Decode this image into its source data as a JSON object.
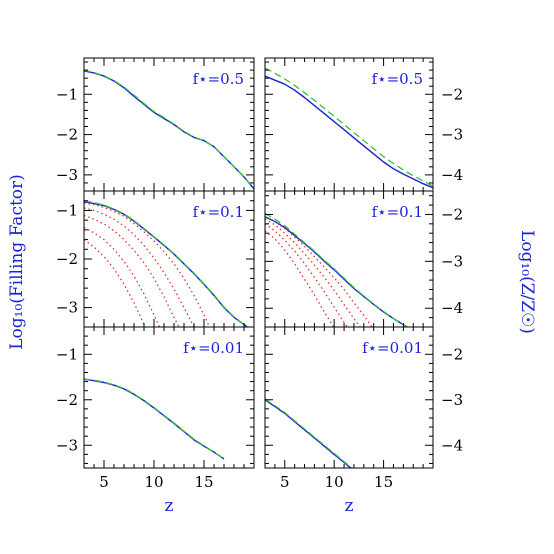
{
  "figure": {
    "left_ylabel": "Log₁₀(Filling Factor)",
    "right_ylabel": "Log₁₀(Z/Z☉)",
    "xlabel_left": "z",
    "xlabel_right": "z"
  },
  "colors": {
    "main": "#1c22d6",
    "dashed": "#35c435",
    "dotted": "#e0322c",
    "axis": "#000000"
  },
  "chart_data": [
    {
      "type": "line",
      "row": 0,
      "col": 0,
      "label": "f⋆=0.5",
      "xlim": [
        3,
        20
      ],
      "ylim": [
        -3.4,
        -0.1
      ],
      "xticks": [
        5,
        10,
        15
      ],
      "yticks": [
        -1,
        -2,
        -3
      ],
      "x": [
        3,
        4,
        5,
        6,
        7,
        8,
        9,
        10,
        11,
        12,
        13,
        14,
        15,
        16,
        17,
        18,
        19,
        20
      ],
      "series": [
        {
          "style": "solid",
          "values": [
            -0.42,
            -0.47,
            -0.55,
            -0.67,
            -0.84,
            -1.05,
            -1.25,
            -1.45,
            -1.6,
            -1.75,
            -1.93,
            -2.07,
            -2.15,
            -2.3,
            -2.55,
            -2.8,
            -3.05,
            -3.35
          ]
        },
        {
          "style": "dashed",
          "values": [
            -0.4,
            -0.46,
            -0.54,
            -0.66,
            -0.82,
            -1.02,
            -1.23,
            -1.43,
            -1.58,
            -1.74,
            -1.92,
            -2.06,
            -2.15,
            -2.3,
            -2.55,
            -2.8,
            -3.05,
            -3.35
          ]
        }
      ]
    },
    {
      "type": "line",
      "row": 0,
      "col": 1,
      "label": "f⋆=0.5",
      "xlim": [
        3,
        20
      ],
      "ylim": [
        -4.4,
        -1.1
      ],
      "xticks": [
        5,
        10,
        15
      ],
      "yticks": [
        -2,
        -3,
        -4
      ],
      "x": [
        3,
        4,
        5,
        6,
        7,
        8,
        9,
        10,
        11,
        12,
        13,
        14,
        15,
        16,
        17,
        18,
        19,
        20
      ],
      "series": [
        {
          "style": "solid",
          "values": [
            -1.55,
            -1.65,
            -1.75,
            -1.9,
            -2.08,
            -2.28,
            -2.48,
            -2.68,
            -2.88,
            -3.08,
            -3.28,
            -3.48,
            -3.68,
            -3.85,
            -3.98,
            -4.1,
            -4.22,
            -4.32
          ]
        },
        {
          "style": "dashed",
          "values": [
            -1.35,
            -1.48,
            -1.62,
            -1.78,
            -1.96,
            -2.15,
            -2.35,
            -2.55,
            -2.75,
            -2.95,
            -3.15,
            -3.35,
            -3.55,
            -3.72,
            -3.88,
            -4.02,
            -4.15,
            -4.28
          ]
        }
      ]
    },
    {
      "type": "line",
      "row": 1,
      "col": 0,
      "label": "f⋆=0.1",
      "xlim": [
        3,
        20
      ],
      "ylim": [
        -3.4,
        -0.6
      ],
      "xticks": [
        5,
        10,
        15
      ],
      "yticks": [
        -1,
        -2,
        -3
      ],
      "x": [
        3,
        4,
        5,
        6,
        7,
        8,
        9,
        10,
        11,
        12,
        13,
        14,
        15,
        16,
        17,
        18,
        19,
        20
      ],
      "series": [
        {
          "style": "solid",
          "values": [
            -0.82,
            -0.86,
            -0.9,
            -0.98,
            -1.08,
            -1.22,
            -1.38,
            -1.55,
            -1.72,
            -1.9,
            -2.1,
            -2.3,
            -2.52,
            -2.75,
            -3.0,
            -3.2,
            -3.35,
            -3.5
          ]
        },
        {
          "style": "dashed",
          "values": [
            -0.8,
            -0.84,
            -0.89,
            -0.97,
            -1.07,
            -1.21,
            -1.37,
            -1.54,
            -1.71,
            -1.89,
            -2.09,
            -2.29,
            -2.51,
            -2.74,
            -2.99,
            -3.19,
            -3.35,
            -3.5
          ]
        },
        {
          "style": "dotted",
          "x": [
            3,
            4,
            5,
            6,
            7,
            8,
            9,
            10,
            11,
            12,
            13,
            14,
            15,
            16
          ],
          "values": [
            -0.85,
            -0.88,
            -0.94,
            -1.02,
            -1.12,
            -1.27,
            -1.44,
            -1.63,
            -1.85,
            -2.1,
            -2.4,
            -2.75,
            -3.15,
            -3.6
          ]
        },
        {
          "style": "dotted",
          "x": [
            3,
            4,
            5,
            6,
            7,
            8,
            9,
            10,
            11,
            12,
            13,
            14,
            15
          ],
          "values": [
            -0.95,
            -1.0,
            -1.08,
            -1.18,
            -1.32,
            -1.5,
            -1.72,
            -1.98,
            -2.28,
            -2.62,
            -3.0,
            -3.4,
            -3.8
          ]
        },
        {
          "style": "dotted",
          "x": [
            3,
            4,
            5,
            6,
            7,
            8,
            9,
            10,
            11,
            12,
            13
          ],
          "values": [
            -1.1,
            -1.18,
            -1.28,
            -1.42,
            -1.6,
            -1.82,
            -2.08,
            -2.4,
            -2.78,
            -3.2,
            -3.6
          ]
        },
        {
          "style": "dotted",
          "x": [
            3,
            4,
            5,
            6,
            7,
            8,
            9,
            10,
            11
          ],
          "values": [
            -1.35,
            -1.46,
            -1.6,
            -1.8,
            -2.05,
            -2.35,
            -2.72,
            -3.15,
            -3.6
          ]
        },
        {
          "style": "dotted",
          "x": [
            3,
            4,
            5,
            6,
            7,
            8,
            9,
            10
          ],
          "values": [
            -1.6,
            -1.75,
            -1.95,
            -2.2,
            -2.52,
            -2.9,
            -3.35,
            -3.7
          ]
        }
      ]
    },
    {
      "type": "line",
      "row": 1,
      "col": 1,
      "label": "f⋆=0.1",
      "xlim": [
        3,
        20
      ],
      "ylim": [
        -4.4,
        -1.5
      ],
      "xticks": [
        5,
        10,
        15
      ],
      "yticks": [
        -2,
        -3,
        -4
      ],
      "x": [
        3,
        4,
        5,
        6,
        7,
        8,
        9,
        10,
        11,
        12,
        13,
        14,
        15,
        16,
        17,
        18,
        19,
        20
      ],
      "series": [
        {
          "style": "solid",
          "values": [
            -2.05,
            -2.15,
            -2.28,
            -2.45,
            -2.62,
            -2.8,
            -3.0,
            -3.18,
            -3.38,
            -3.58,
            -3.75,
            -3.92,
            -4.08,
            -4.22,
            -4.35,
            -4.48,
            -4.6,
            -4.7
          ]
        },
        {
          "style": "dashed",
          "values": [
            -1.98,
            -2.1,
            -2.24,
            -2.42,
            -2.6,
            -2.78,
            -2.98,
            -3.16,
            -3.36,
            -3.56,
            -3.74,
            -3.91,
            -4.07,
            -4.22,
            -4.35,
            -4.48,
            -4.6,
            -4.7
          ]
        },
        {
          "style": "dotted",
          "x": [
            3,
            4,
            5,
            6,
            7,
            8,
            9,
            10,
            11,
            12,
            13,
            14
          ],
          "values": [
            -2.05,
            -2.15,
            -2.3,
            -2.48,
            -2.68,
            -2.9,
            -3.12,
            -3.35,
            -3.6,
            -3.88,
            -4.15,
            -4.45
          ]
        },
        {
          "style": "dotted",
          "x": [
            3,
            4,
            5,
            6,
            7,
            8,
            9,
            10,
            11,
            12,
            13
          ],
          "values": [
            -2.1,
            -2.22,
            -2.4,
            -2.6,
            -2.84,
            -3.08,
            -3.34,
            -3.62,
            -3.92,
            -4.22,
            -4.5
          ]
        },
        {
          "style": "dotted",
          "x": [
            3,
            4,
            5,
            6,
            7,
            8,
            9,
            10,
            11,
            12
          ],
          "values": [
            -2.2,
            -2.35,
            -2.55,
            -2.78,
            -3.05,
            -3.34,
            -3.65,
            -3.98,
            -4.3,
            -4.6
          ]
        },
        {
          "style": "dotted",
          "x": [
            3,
            4,
            5,
            6,
            7,
            8,
            9,
            10,
            11
          ],
          "values": [
            -2.35,
            -2.52,
            -2.76,
            -3.05,
            -3.38,
            -3.72,
            -4.08,
            -4.42,
            -4.7
          ]
        }
      ]
    },
    {
      "type": "line",
      "row": 2,
      "col": 0,
      "label": "f⋆=0.01",
      "xlim": [
        3,
        20
      ],
      "ylim": [
        -3.5,
        -0.4
      ],
      "xticks": [
        5,
        10,
        15
      ],
      "yticks": [
        -1,
        -2,
        -3
      ],
      "x": [
        3,
        4,
        5,
        6,
        7,
        8,
        9,
        10,
        11,
        12,
        13,
        14,
        15,
        16,
        17
      ],
      "series": [
        {
          "style": "solid",
          "values": [
            -1.55,
            -1.58,
            -1.62,
            -1.68,
            -1.76,
            -1.88,
            -2.02,
            -2.18,
            -2.35,
            -2.52,
            -2.7,
            -2.88,
            -3.02,
            -3.15,
            -3.3
          ]
        },
        {
          "style": "dashed",
          "values": [
            -1.54,
            -1.57,
            -1.61,
            -1.67,
            -1.75,
            -1.87,
            -2.01,
            -2.17,
            -2.34,
            -2.51,
            -2.69,
            -2.87,
            -3.01,
            -3.15,
            -3.3
          ]
        }
      ]
    },
    {
      "type": "line",
      "row": 2,
      "col": 1,
      "label": "f⋆=0.01",
      "xlim": [
        3,
        20
      ],
      "ylim": [
        -4.5,
        -1.4
      ],
      "xticks": [
        5,
        10,
        15
      ],
      "yticks": [
        -2,
        -3,
        -4
      ],
      "x": [
        3,
        4,
        5,
        6,
        7,
        8,
        9,
        10,
        11,
        12,
        13
      ],
      "series": [
        {
          "style": "solid",
          "values": [
            -3.0,
            -3.15,
            -3.3,
            -3.48,
            -3.66,
            -3.84,
            -4.02,
            -4.2,
            -4.38,
            -4.56,
            -4.74
          ]
        },
        {
          "style": "dashed",
          "values": [
            -2.98,
            -3.13,
            -3.28,
            -3.46,
            -3.64,
            -3.82,
            -4.0,
            -4.18,
            -4.36,
            -4.54,
            -4.72
          ]
        }
      ]
    }
  ]
}
